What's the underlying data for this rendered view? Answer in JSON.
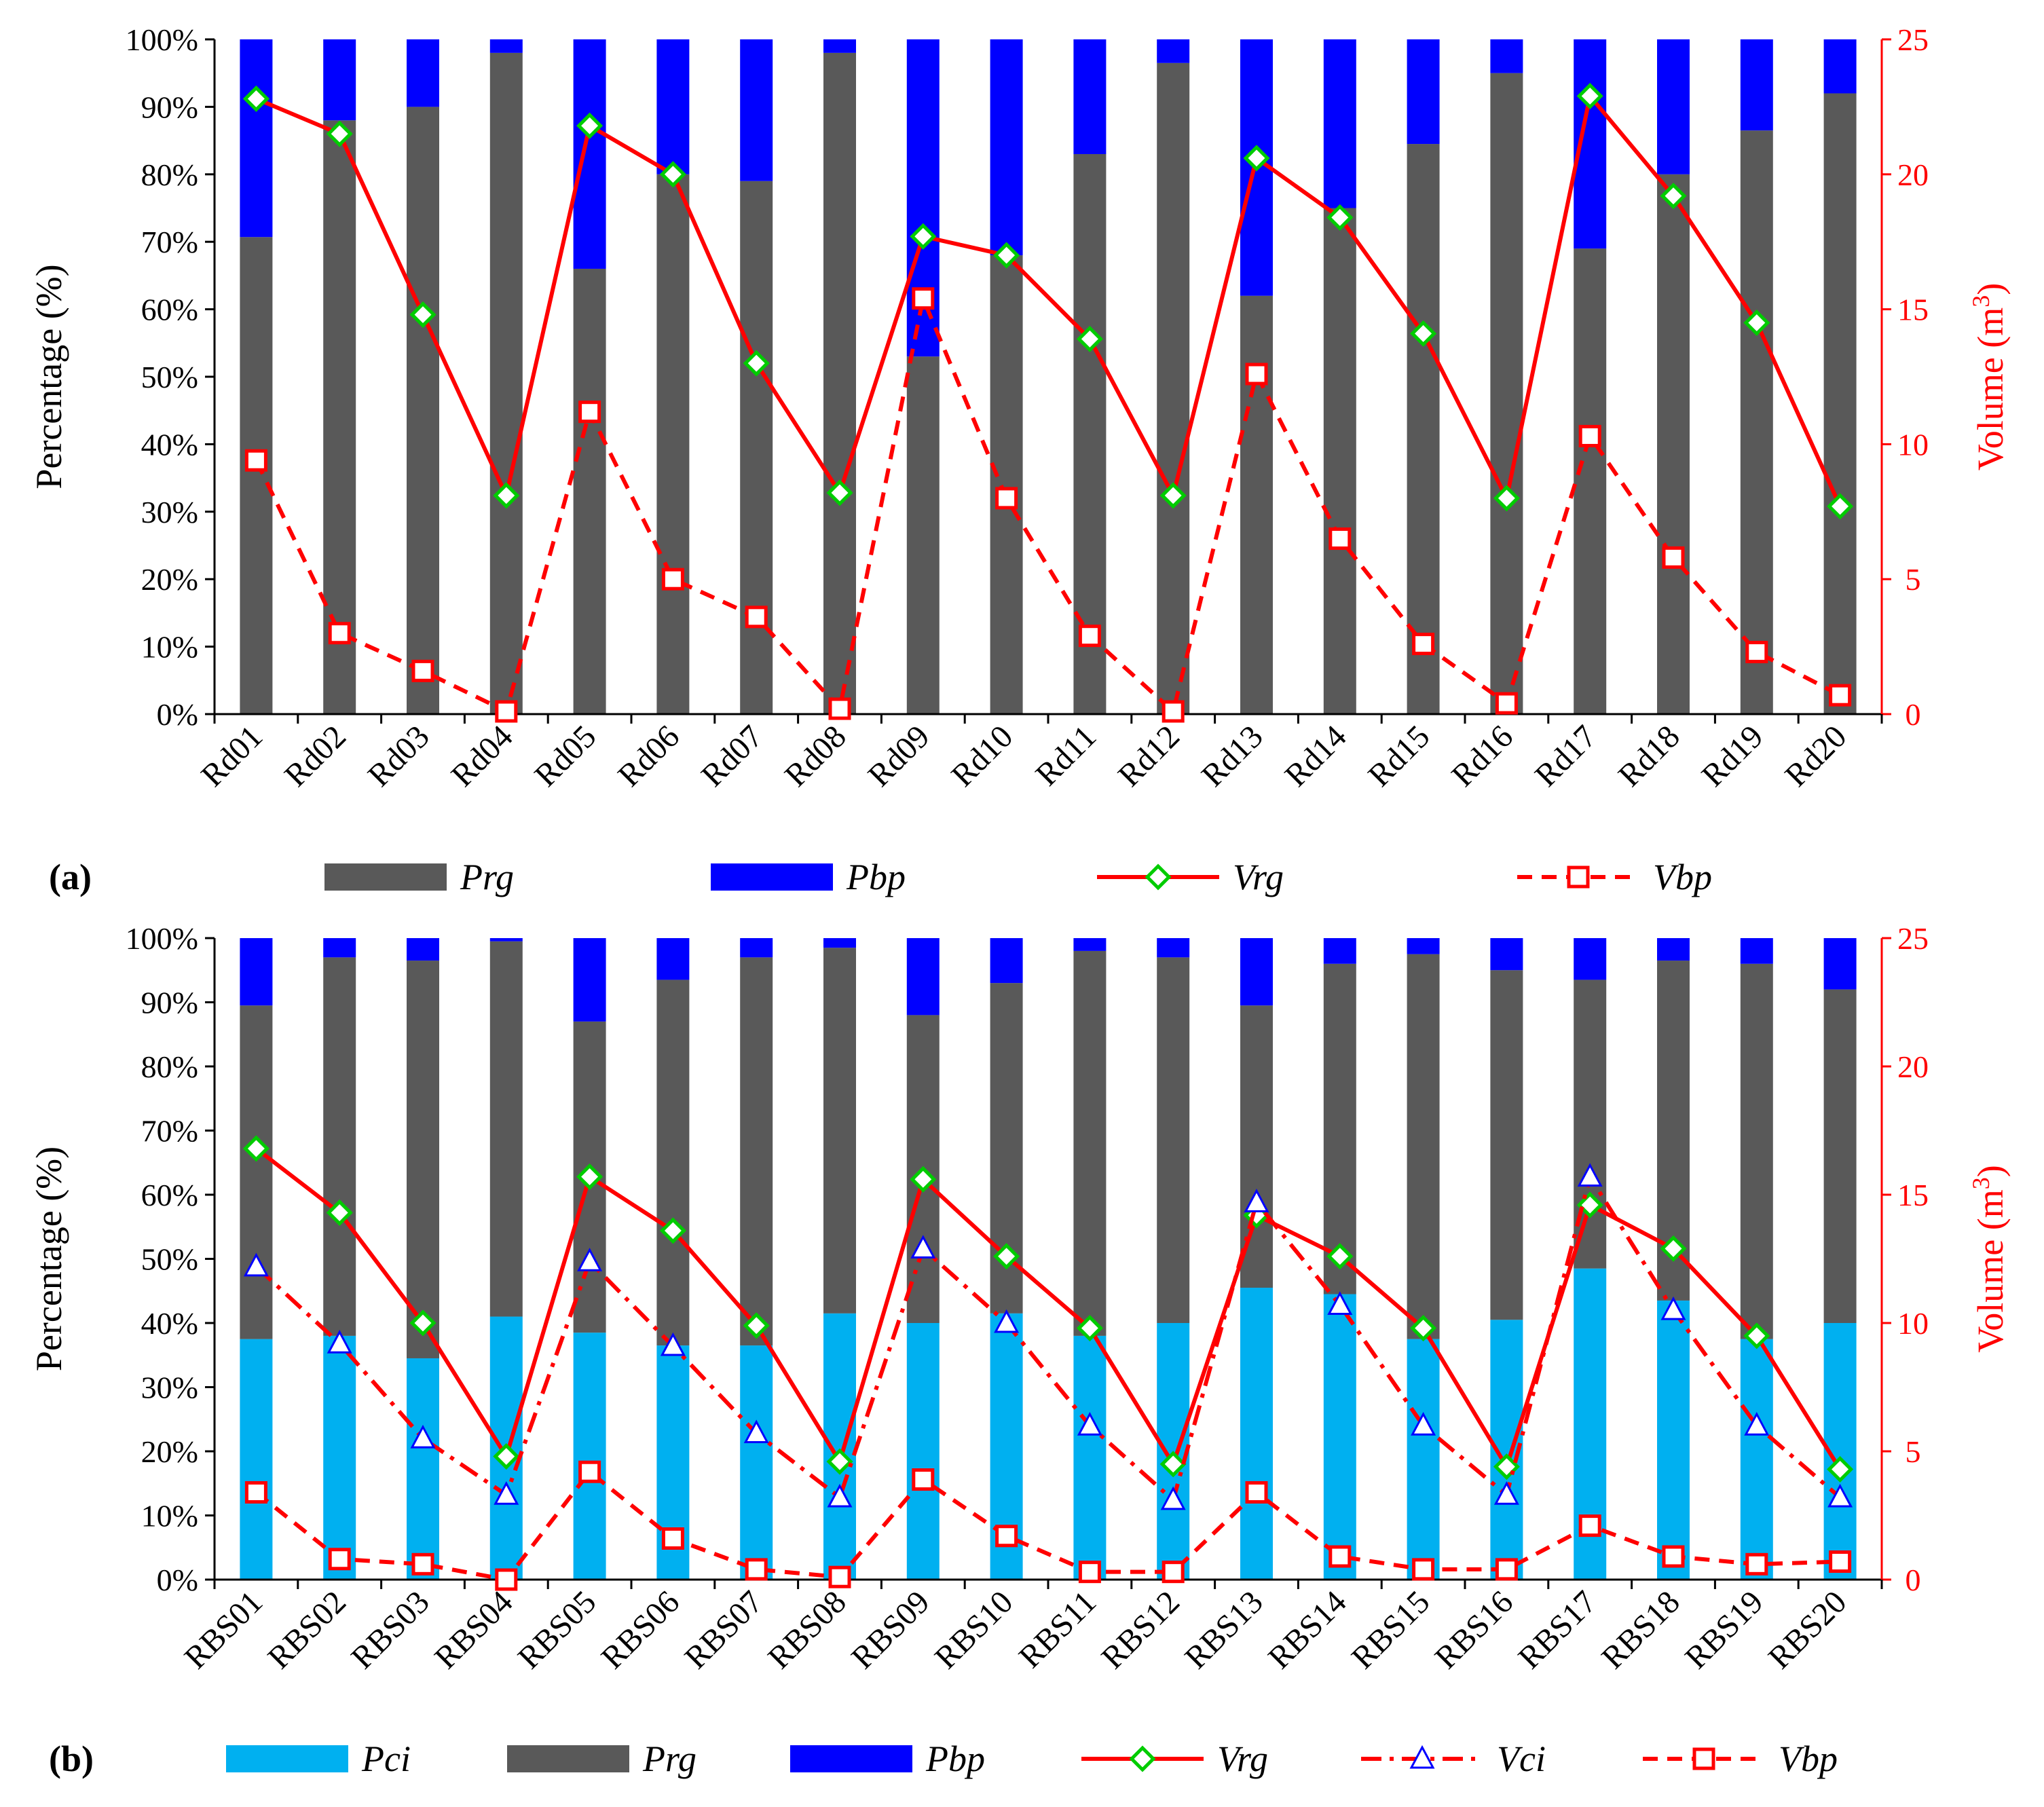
{
  "colors": {
    "Prg": "#595959",
    "Pbp": "#0000ff",
    "Pci": "#00b0f0",
    "line": "#ff0000",
    "diamond": "#00cc00",
    "triangle": "#0000ff"
  },
  "chart_data": [
    {
      "type": "bar",
      "stacked": true,
      "panel_label": "(a)",
      "categories": [
        "Rd01",
        "Rd02",
        "Rd03",
        "Rd04",
        "Rd05",
        "Rd06",
        "Rd07",
        "Rd08",
        "Rd09",
        "Rd10",
        "Rd11",
        "Rd12",
        "Rd13",
        "Rd14",
        "Rd15",
        "Rd16",
        "Rd17",
        "Rd18",
        "Rd19",
        "Rd20"
      ],
      "ylabel": "Percentage (%)",
      "y2label_main": "Volume (m",
      "y2label_sup": "3",
      "y2label_end": ")",
      "ylim": [
        0,
        100
      ],
      "y2lim": [
        0,
        25
      ],
      "yticks": [
        "0%",
        "10%",
        "20%",
        "30%",
        "40%",
        "50%",
        "60%",
        "70%",
        "80%",
        "90%",
        "100%"
      ],
      "y2ticks": [
        "0",
        "5",
        "10",
        "15",
        "20",
        "25"
      ],
      "bar_series": [
        {
          "name": "Prg",
          "values": [
            70.7,
            88,
            90,
            98,
            66,
            80,
            79,
            98,
            53,
            68,
            83,
            96.5,
            62,
            75,
            84.5,
            95,
            69,
            80,
            86.5,
            92
          ]
        },
        {
          "name": "Pbp",
          "values": [
            29.3,
            12,
            10,
            2,
            34,
            20,
            21,
            2,
            47,
            32,
            17,
            3.5,
            38,
            25,
            15.5,
            5,
            31,
            20,
            13.5,
            8
          ]
        }
      ],
      "line_series": [
        {
          "name": "Vrg",
          "marker": "diamond",
          "dash": "solid",
          "values": [
            22.8,
            21.5,
            14.8,
            8.1,
            21.8,
            20,
            13,
            8.2,
            17.7,
            17,
            13.9,
            8.1,
            20.6,
            18.4,
            14.1,
            8,
            22.9,
            19.2,
            14.5,
            7.7
          ]
        },
        {
          "name": "Vbp",
          "marker": "square",
          "dash": "dash",
          "values": [
            9.4,
            3,
            1.6,
            0.1,
            11.2,
            5,
            3.6,
            0.2,
            15.4,
            8,
            2.9,
            0.1,
            12.6,
            6.5,
            2.6,
            0.4,
            10.3,
            5.8,
            2.3,
            0.7
          ]
        }
      ],
      "legend": [
        "Prg",
        "Pbp",
        "Vrg",
        "Vbp"
      ]
    },
    {
      "type": "bar",
      "stacked": true,
      "panel_label": "(b)",
      "categories": [
        "RBS01",
        "RBS02",
        "RBS03",
        "RBS04",
        "RBS05",
        "RBS06",
        "RBS07",
        "RBS08",
        "RBS09",
        "RBS10",
        "RBS11",
        "RBS12",
        "RBS13",
        "RBS14",
        "RBS15",
        "RBS16",
        "RBS17",
        "RBS18",
        "RBS19",
        "RBS20"
      ],
      "ylabel": "Percentage (%)",
      "y2label_main": "Volume (m",
      "y2label_sup": "3",
      "y2label_end": ")",
      "ylim": [
        0,
        100
      ],
      "y2lim": [
        0,
        25
      ],
      "yticks": [
        "0%",
        "10%",
        "20%",
        "30%",
        "40%",
        "50%",
        "60%",
        "70%",
        "80%",
        "90%",
        "100%"
      ],
      "y2ticks": [
        "0",
        "5",
        "10",
        "15",
        "20",
        "25"
      ],
      "bar_series": [
        {
          "name": "Pci",
          "values": [
            37.5,
            38,
            34.5,
            41,
            38.5,
            36.5,
            36.5,
            41.5,
            40,
            41.5,
            38,
            40,
            45.5,
            44.5,
            37.5,
            40.5,
            48.5,
            43.5,
            37.5,
            40
          ]
        },
        {
          "name": "Prg",
          "values": [
            52,
            59,
            62,
            58.5,
            48.5,
            57,
            60.5,
            57,
            48,
            51.5,
            60,
            57,
            44,
            51.5,
            60,
            54.5,
            45,
            53,
            58.5,
            52
          ]
        },
        {
          "name": "Pbp",
          "values": [
            10.5,
            3,
            3.5,
            0.5,
            13,
            6.5,
            3,
            1.5,
            12,
            7,
            2,
            3,
            10.5,
            4,
            2.5,
            5,
            6.5,
            3.5,
            4,
            8
          ]
        }
      ],
      "line_series": [
        {
          "name": "Vrg",
          "marker": "diamond",
          "dash": "solid",
          "values": [
            16.8,
            14.3,
            10,
            4.8,
            15.7,
            13.6,
            9.9,
            4.6,
            15.6,
            12.6,
            9.8,
            4.5,
            14.2,
            12.6,
            9.8,
            4.4,
            14.6,
            12.9,
            9.5,
            4.3
          ]
        },
        {
          "name": "Vci",
          "marker": "triangle",
          "dash": "dashdot",
          "values": [
            12.2,
            9.2,
            5.5,
            3.3,
            12.4,
            9.1,
            5.7,
            3.2,
            12.9,
            10,
            6,
            3.1,
            14.7,
            10.7,
            6,
            3.3,
            15.7,
            10.5,
            6,
            3.2
          ]
        },
        {
          "name": "Vbp",
          "marker": "square",
          "dash": "dash",
          "values": [
            3.4,
            0.8,
            0.6,
            0,
            4.2,
            1.6,
            0.4,
            0.1,
            3.9,
            1.7,
            0.3,
            0.3,
            3.4,
            0.9,
            0.4,
            0.4,
            2.1,
            0.9,
            0.6,
            0.7
          ]
        }
      ],
      "legend": [
        "Pci",
        "Prg",
        "Pbp",
        "Vrg",
        "Vci",
        "Vbp"
      ]
    }
  ]
}
